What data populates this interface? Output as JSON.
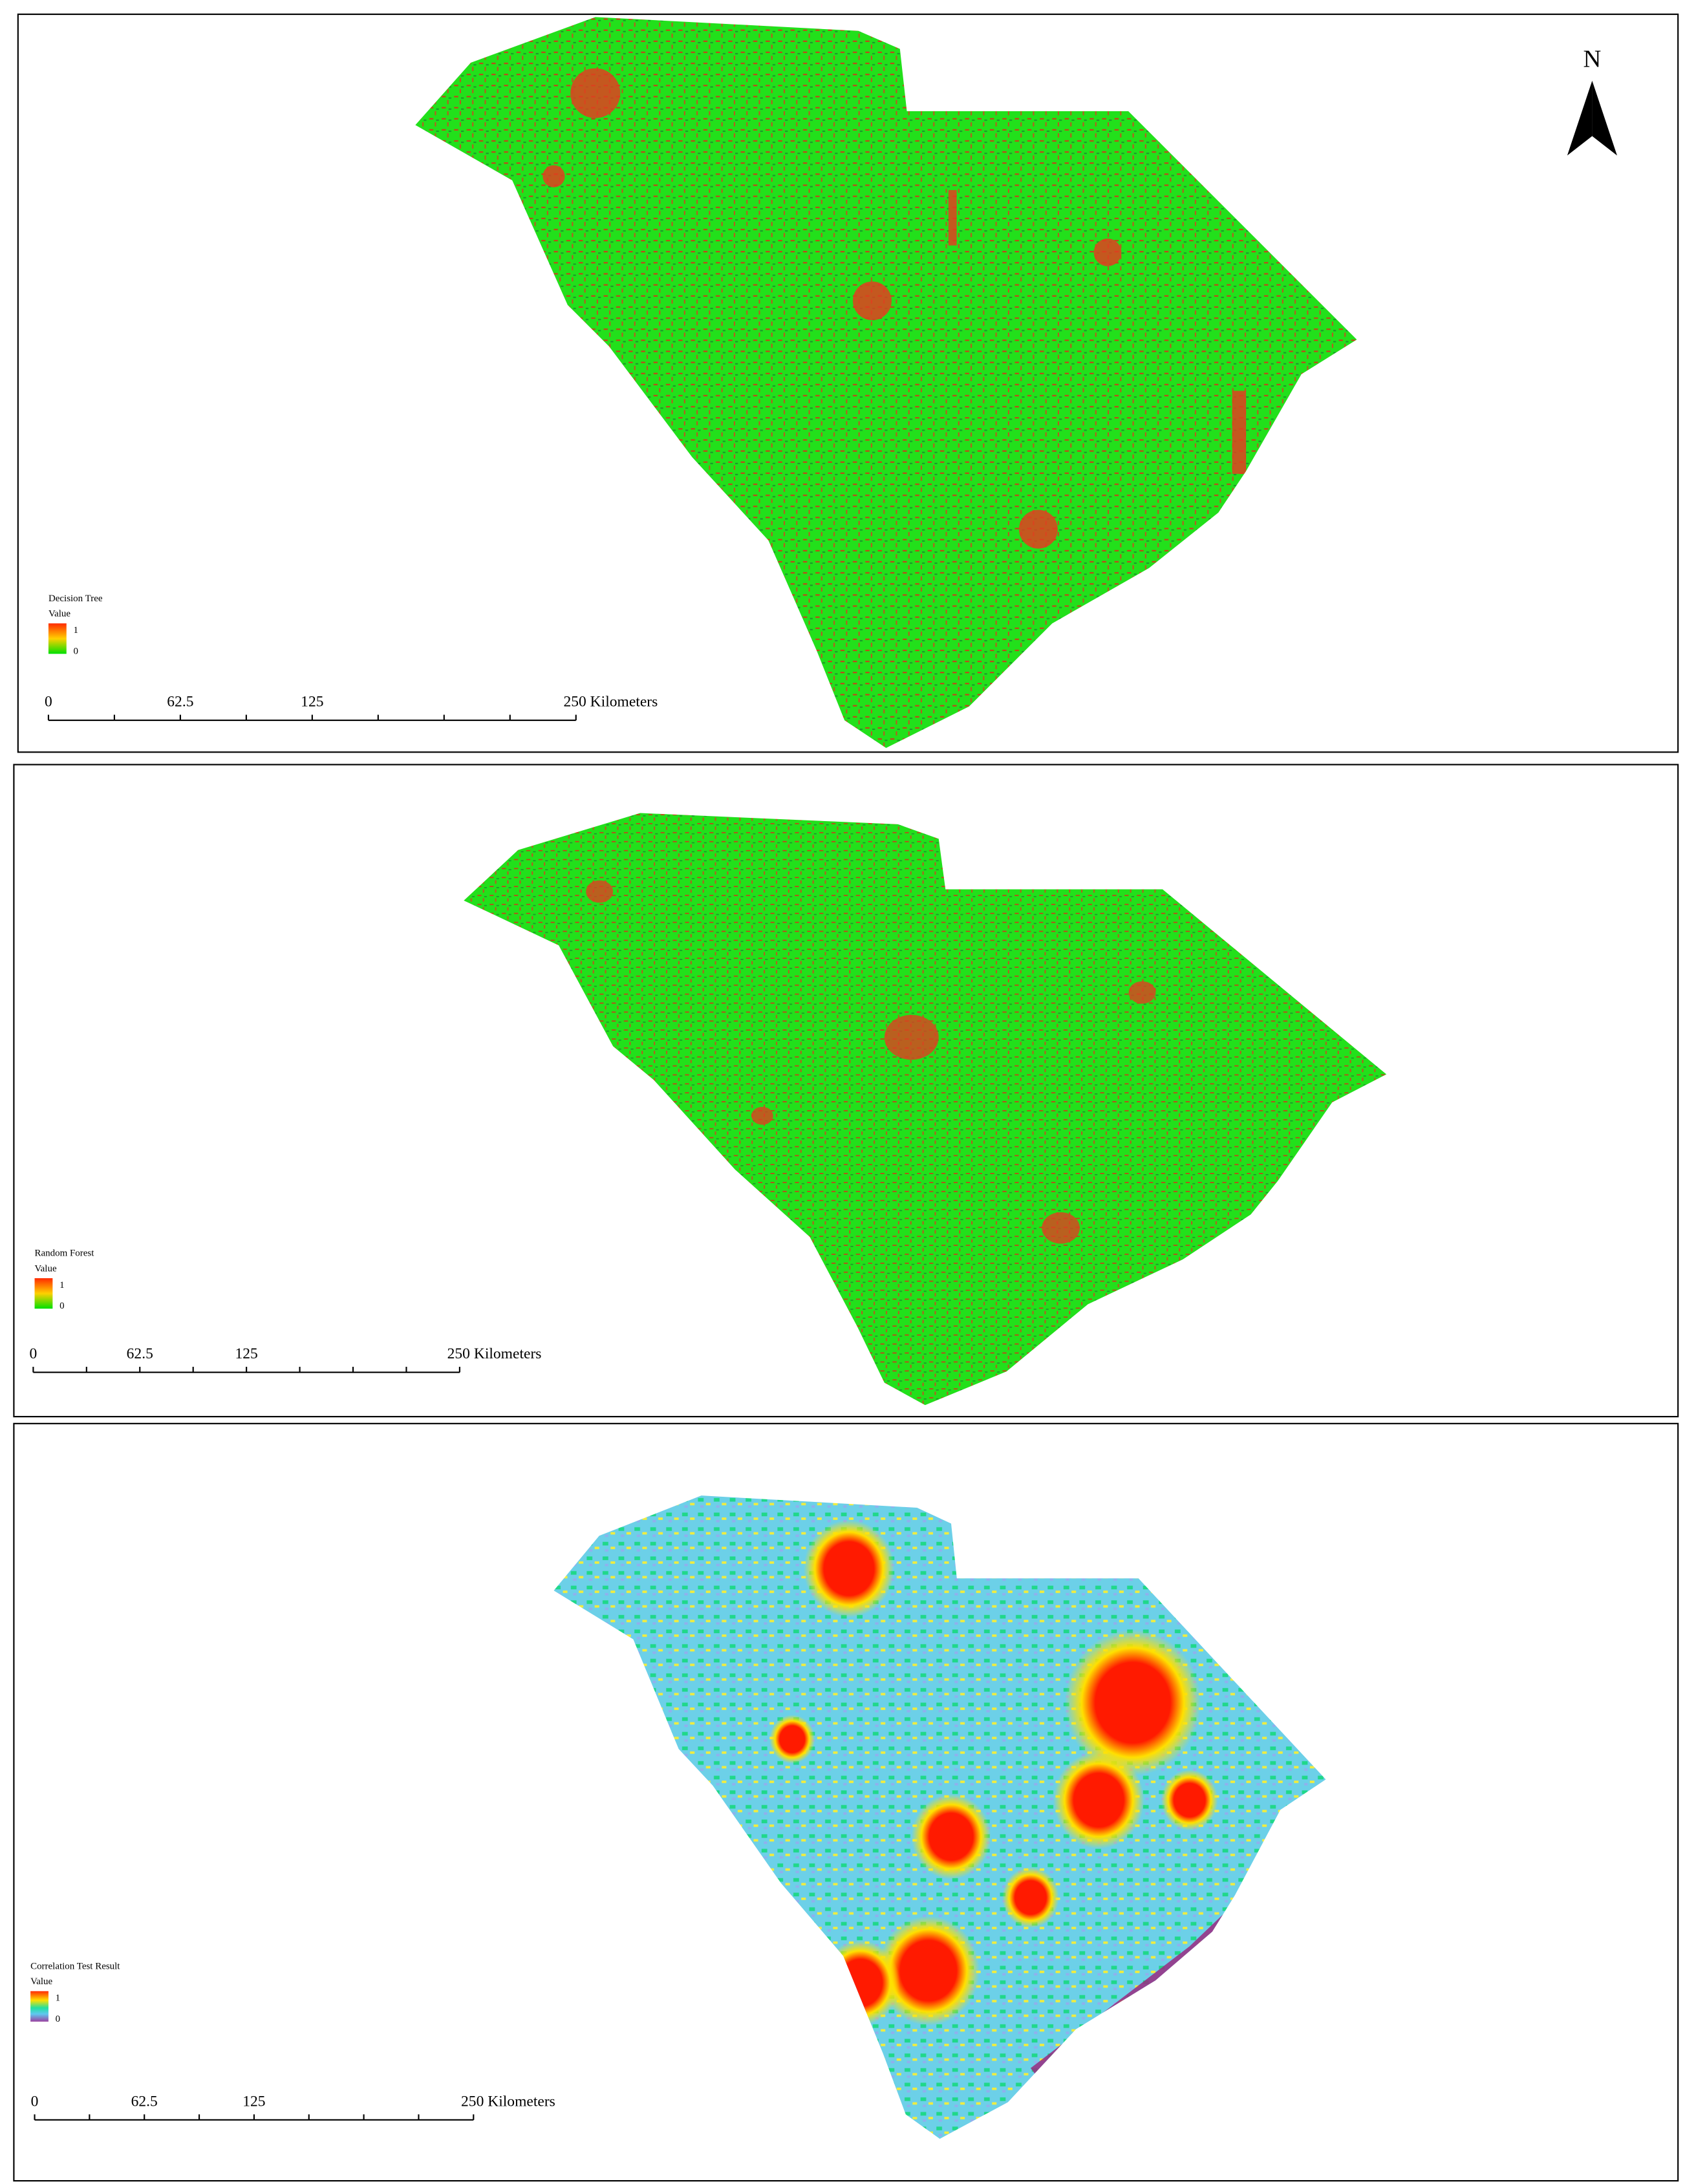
{
  "north": "N",
  "panels": [
    {
      "legend": {
        "title": "Decision Tree",
        "field": "Value",
        "high": "1",
        "low": "0"
      },
      "scale": {
        "labels": [
          "0",
          "62.5",
          "125",
          "250 Kilometers"
        ]
      }
    },
    {
      "legend": {
        "title": "Random Forest",
        "field": "Value",
        "high": "1",
        "low": "0"
      },
      "scale": {
        "labels": [
          "0",
          "62.5",
          "125",
          "250 Kilometers"
        ]
      }
    },
    {
      "legend": {
        "title": "Correlation Test Result",
        "field": "Value",
        "high": "1",
        "low": "0"
      },
      "scale": {
        "labels": [
          "0",
          "62.5",
          "125",
          "250 Kilometers"
        ]
      }
    }
  ]
}
